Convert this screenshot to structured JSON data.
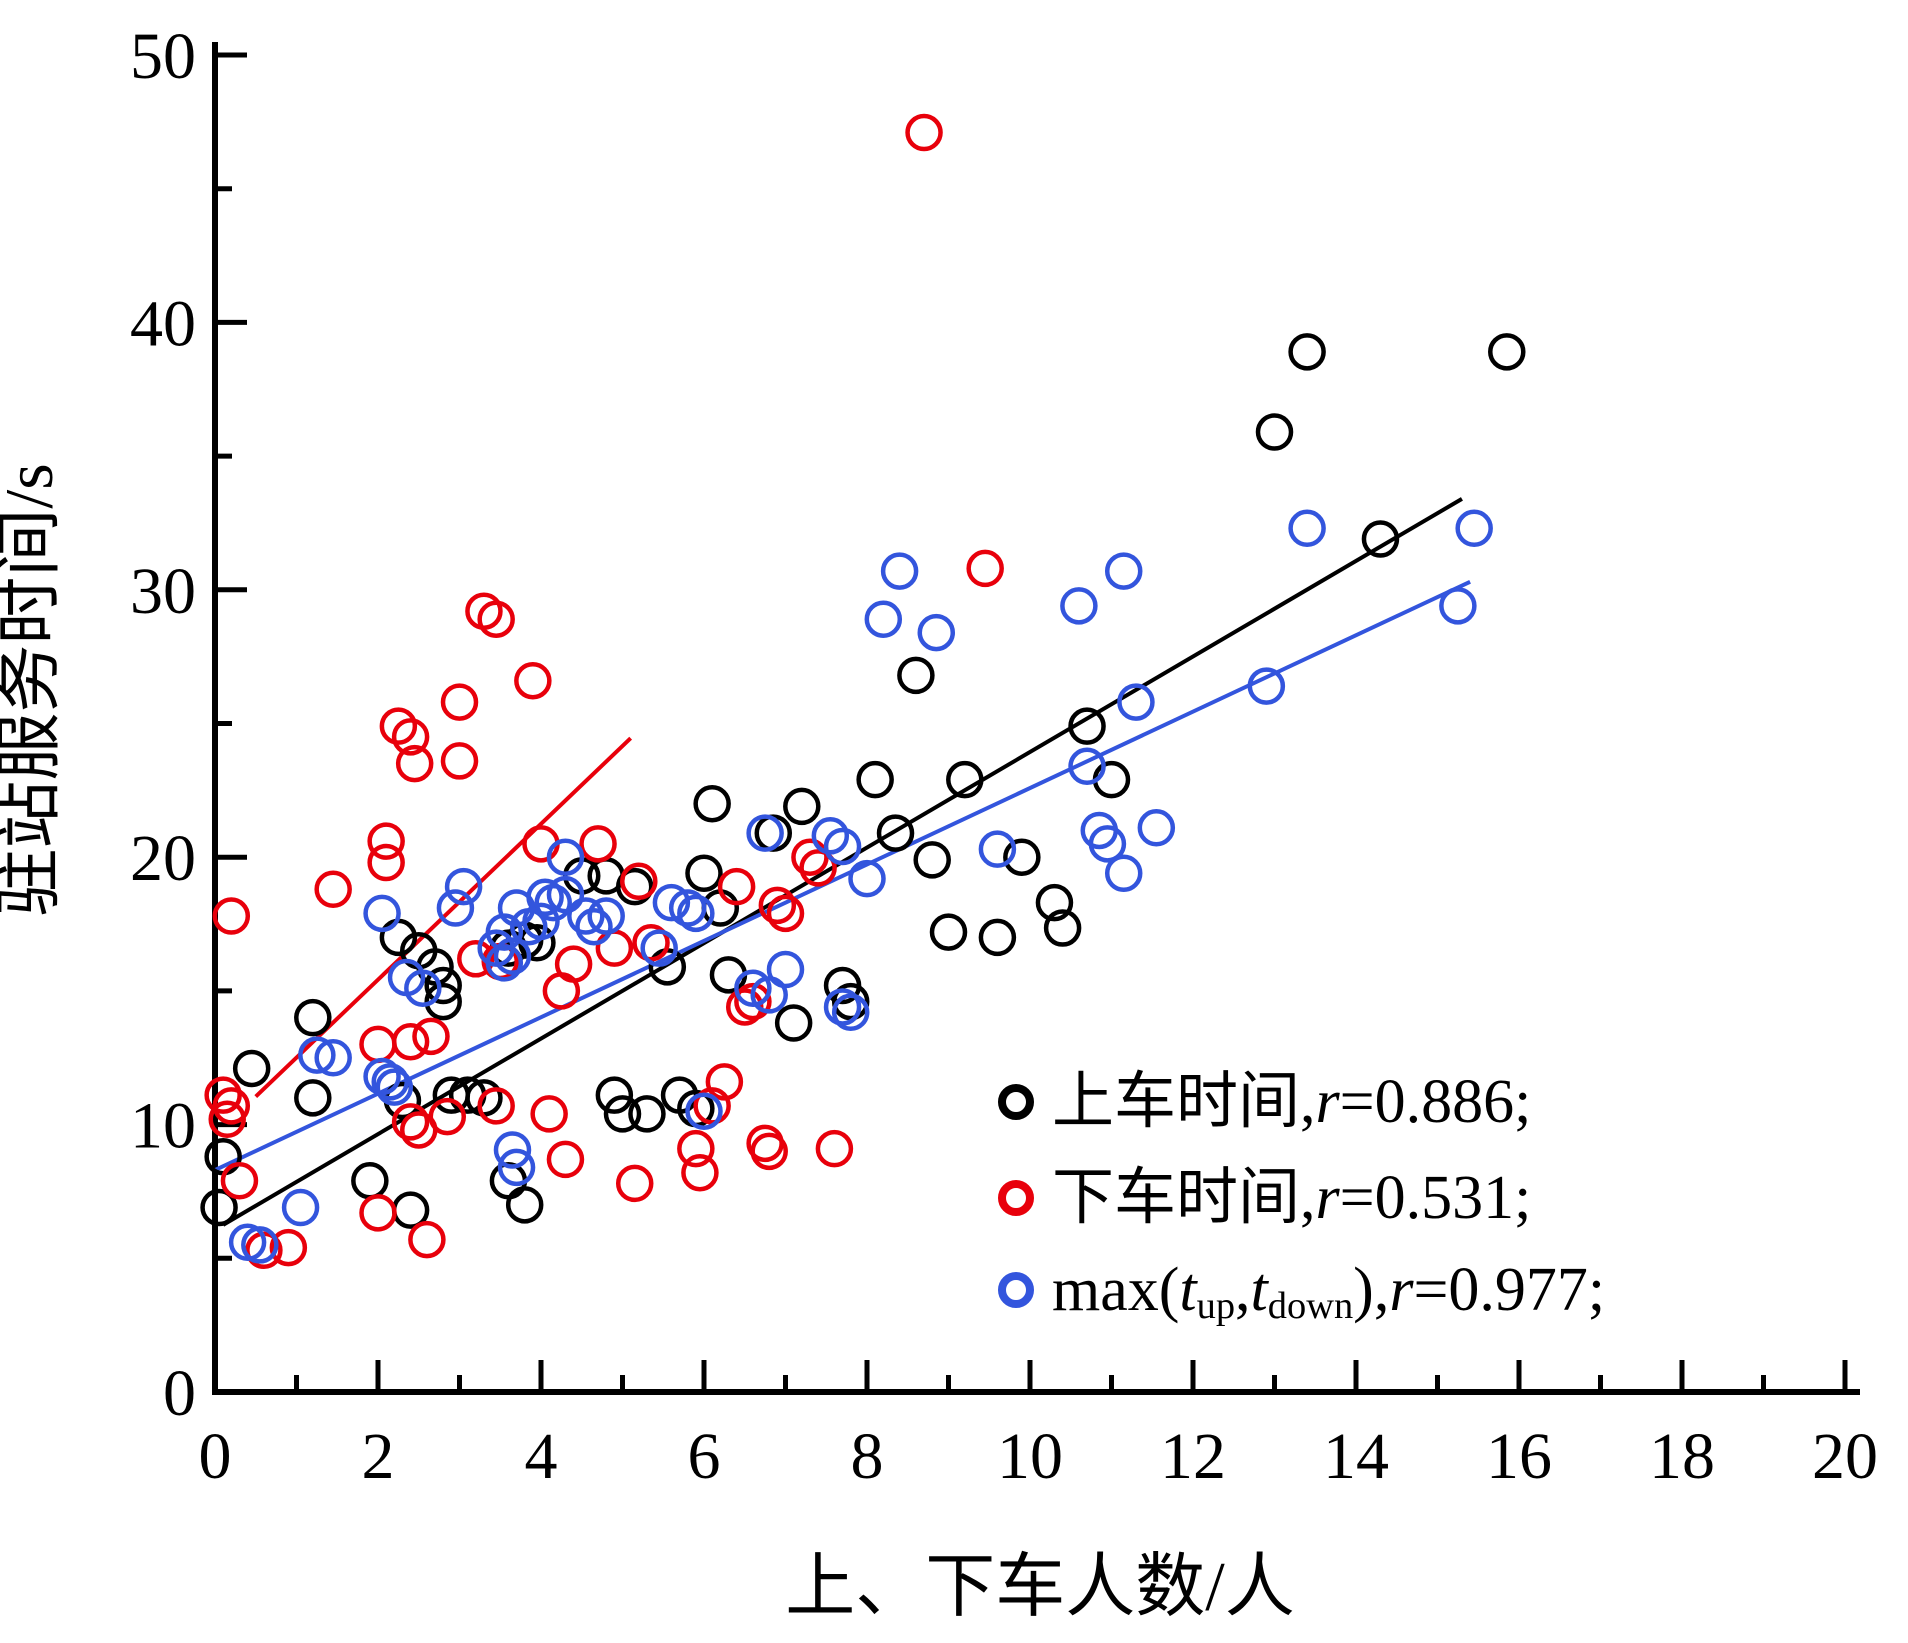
{
  "chart_data": {
    "type": "scatter",
    "title": "",
    "xlabel": "上、下车人数/人",
    "ylabel": "驻站服务时间/s",
    "xlim": [
      0,
      20
    ],
    "ylim": [
      0,
      50
    ],
    "x_ticks": [
      0,
      2,
      4,
      6,
      8,
      10,
      12,
      14,
      16,
      18,
      20
    ],
    "x_minor_ticks": [
      1,
      3,
      5,
      7,
      9,
      11,
      13,
      15,
      17,
      19
    ],
    "y_ticks": [
      0,
      10,
      20,
      30,
      40,
      50
    ],
    "y_minor_ticks": [
      5,
      15,
      25,
      35,
      45
    ],
    "grid": false,
    "legend_position": "inside-lower-right",
    "series": [
      {
        "name": "上车时间",
        "r": "0.886",
        "color": "#000000",
        "points": [
          [
            0.1,
            8.8
          ],
          [
            0.05,
            6.9
          ],
          [
            0.45,
            12.1
          ],
          [
            1.2,
            14.0
          ],
          [
            1.2,
            11.0
          ],
          [
            1.9,
            7.9
          ],
          [
            2.4,
            6.8
          ],
          [
            2.25,
            17.0
          ],
          [
            2.5,
            16.5
          ],
          [
            2.7,
            15.9
          ],
          [
            2.8,
            15.2
          ],
          [
            2.8,
            14.6
          ],
          [
            2.3,
            10.9
          ],
          [
            2.9,
            11.1
          ],
          [
            3.1,
            11.1
          ],
          [
            3.3,
            11.0
          ],
          [
            3.6,
            7.9
          ],
          [
            3.8,
            7.0
          ],
          [
            3.6,
            16.6
          ],
          [
            3.8,
            16.9
          ],
          [
            3.95,
            16.8
          ],
          [
            4.5,
            19.3
          ],
          [
            4.8,
            19.3
          ],
          [
            5.15,
            18.9
          ],
          [
            5.55,
            15.9
          ],
          [
            4.9,
            11.1
          ],
          [
            5.0,
            10.4
          ],
          [
            5.3,
            10.4
          ],
          [
            5.7,
            11.1
          ],
          [
            5.9,
            10.6
          ],
          [
            6.0,
            19.4
          ],
          [
            6.2,
            18.1
          ],
          [
            6.3,
            15.6
          ],
          [
            6.1,
            22.0
          ],
          [
            7.2,
            21.9
          ],
          [
            6.85,
            20.9
          ],
          [
            7.7,
            15.2
          ],
          [
            7.8,
            14.6
          ],
          [
            7.1,
            13.8
          ],
          [
            8.1,
            22.9
          ],
          [
            8.35,
            20.9
          ],
          [
            8.6,
            26.8
          ],
          [
            8.8,
            19.9
          ],
          [
            9.0,
            17.2
          ],
          [
            9.6,
            17.0
          ],
          [
            9.2,
            22.9
          ],
          [
            9.9,
            20.0
          ],
          [
            10.3,
            18.3
          ],
          [
            10.4,
            17.35
          ],
          [
            10.7,
            24.9
          ],
          [
            11.0,
            22.9
          ],
          [
            13.0,
            35.9
          ],
          [
            13.4,
            38.9
          ],
          [
            14.3,
            31.9
          ],
          [
            15.85,
            38.9
          ]
        ]
      },
      {
        "name": "下车时间",
        "r": "0.531",
        "color": "#e8000b",
        "points": [
          [
            0.1,
            11.1
          ],
          [
            0.2,
            10.7
          ],
          [
            0.15,
            10.2
          ],
          [
            0.2,
            17.8
          ],
          [
            0.3,
            7.9
          ],
          [
            0.6,
            5.3
          ],
          [
            0.9,
            5.4
          ],
          [
            1.45,
            18.8
          ],
          [
            2.0,
            6.7
          ],
          [
            2.6,
            5.7
          ],
          [
            2.1,
            20.6
          ],
          [
            2.1,
            19.8
          ],
          [
            2.25,
            24.9
          ],
          [
            2.4,
            24.5
          ],
          [
            2.45,
            23.5
          ],
          [
            3.0,
            23.6
          ],
          [
            3.0,
            25.8
          ],
          [
            3.3,
            29.2
          ],
          [
            3.45,
            28.9
          ],
          [
            3.9,
            26.6
          ],
          [
            2.4,
            10.1
          ],
          [
            2.5,
            9.8
          ],
          [
            2.85,
            10.3
          ],
          [
            3.45,
            10.7
          ],
          [
            2.0,
            13.0
          ],
          [
            2.4,
            13.1
          ],
          [
            2.65,
            13.3
          ],
          [
            4.0,
            20.5
          ],
          [
            4.7,
            20.5
          ],
          [
            5.2,
            19.1
          ],
          [
            3.2,
            16.2
          ],
          [
            3.5,
            16.1
          ],
          [
            4.4,
            16.0
          ],
          [
            4.9,
            16.6
          ],
          [
            4.25,
            15.0
          ],
          [
            5.35,
            16.8
          ],
          [
            4.1,
            10.4
          ],
          [
            4.3,
            8.7
          ],
          [
            5.15,
            7.8
          ],
          [
            5.9,
            9.1
          ],
          [
            5.95,
            8.2
          ],
          [
            6.4,
            18.9
          ],
          [
            6.9,
            18.2
          ],
          [
            7.0,
            17.9
          ],
          [
            7.3,
            20.0
          ],
          [
            7.4,
            19.6
          ],
          [
            6.5,
            14.4
          ],
          [
            6.6,
            14.6
          ],
          [
            6.25,
            11.6
          ],
          [
            6.1,
            10.7
          ],
          [
            6.75,
            9.3
          ],
          [
            6.8,
            9.0
          ],
          [
            7.6,
            9.1
          ],
          [
            9.45,
            30.8
          ],
          [
            8.7,
            47.1
          ]
        ]
      },
      {
        "name": "max(t_up,t_down)",
        "r": "0.977",
        "color": "#3355dd",
        "points": [
          [
            0.4,
            5.6
          ],
          [
            0.55,
            5.5
          ],
          [
            1.05,
            6.9
          ],
          [
            1.25,
            12.6
          ],
          [
            1.45,
            12.5
          ],
          [
            2.05,
            17.9
          ],
          [
            2.35,
            15.5
          ],
          [
            2.55,
            15.1
          ],
          [
            2.05,
            11.8
          ],
          [
            2.15,
            11.6
          ],
          [
            2.2,
            11.4
          ],
          [
            2.95,
            18.1
          ],
          [
            3.05,
            18.9
          ],
          [
            3.45,
            16.6
          ],
          [
            3.65,
            16.3
          ],
          [
            3.55,
            16.05
          ],
          [
            3.55,
            17.2
          ],
          [
            3.85,
            17.4
          ],
          [
            4.0,
            17.6
          ],
          [
            3.7,
            18.1
          ],
          [
            4.05,
            18.5
          ],
          [
            4.15,
            18.3
          ],
          [
            4.3,
            18.6
          ],
          [
            4.3,
            20.0
          ],
          [
            4.55,
            17.8
          ],
          [
            4.65,
            17.4
          ],
          [
            4.8,
            17.8
          ],
          [
            5.6,
            18.3
          ],
          [
            5.8,
            18.1
          ],
          [
            5.9,
            17.9
          ],
          [
            5.45,
            16.6
          ],
          [
            3.65,
            9.05
          ],
          [
            3.7,
            8.4
          ],
          [
            6.0,
            10.5
          ],
          [
            6.75,
            20.9
          ],
          [
            7.55,
            20.8
          ],
          [
            7.7,
            20.4
          ],
          [
            8.0,
            19.2
          ],
          [
            9.6,
            20.3
          ],
          [
            10.85,
            21.0
          ],
          [
            10.95,
            20.5
          ],
          [
            11.55,
            21.1
          ],
          [
            11.15,
            19.4
          ],
          [
            10.7,
            23.4
          ],
          [
            11.3,
            25.8
          ],
          [
            7.0,
            15.8
          ],
          [
            6.6,
            15.1
          ],
          [
            6.8,
            14.85
          ],
          [
            7.7,
            14.4
          ],
          [
            7.8,
            14.2
          ],
          [
            8.2,
            28.9
          ],
          [
            8.4,
            30.7
          ],
          [
            8.85,
            28.4
          ],
          [
            10.6,
            29.4
          ],
          [
            11.15,
            30.7
          ],
          [
            12.9,
            26.4
          ],
          [
            13.4,
            32.3
          ],
          [
            15.45,
            32.3
          ],
          [
            15.25,
            29.4
          ]
        ]
      }
    ],
    "trend_lines": [
      {
        "series": "上车时间",
        "color": "#000000",
        "from": [
          0.1,
          6.25
        ],
        "to": [
          15.3,
          33.4
        ]
      },
      {
        "series": "下车时间",
        "color": "#e8000b",
        "from": [
          0.5,
          11.05
        ],
        "to": [
          5.1,
          24.45
        ]
      },
      {
        "series": "max(t_up,t_down)",
        "color": "#3355dd",
        "from": [
          0.0,
          8.3
        ],
        "to": [
          15.4,
          30.3
        ]
      }
    ],
    "legend": [
      {
        "marker_color": "#000000",
        "parts": [
          {
            "k": "t",
            "v": "上车时间,"
          },
          {
            "k": "i",
            "v": "r"
          },
          {
            "k": "t",
            "v": "=0.886;"
          }
        ]
      },
      {
        "marker_color": "#e8000b",
        "parts": [
          {
            "k": "t",
            "v": "下车时间,"
          },
          {
            "k": "i",
            "v": "r"
          },
          {
            "k": "t",
            "v": "=0.531;"
          }
        ]
      },
      {
        "marker_color": "#3355dd",
        "parts": [
          {
            "k": "t",
            "v": "max("
          },
          {
            "k": "i",
            "v": "t"
          },
          {
            "k": "s",
            "v": "up"
          },
          {
            "k": "t",
            "v": ","
          },
          {
            "k": "i",
            "v": "t"
          },
          {
            "k": "s",
            "v": "down"
          },
          {
            "k": "t",
            "v": "),"
          },
          {
            "k": "i",
            "v": "r"
          },
          {
            "k": "t",
            "v": "=0.977;"
          }
        ]
      }
    ],
    "colors": {
      "axis": "#000000",
      "background": "#ffffff",
      "series_black": "#000000",
      "series_red": "#e8000b",
      "series_blue": "#3355dd"
    }
  }
}
